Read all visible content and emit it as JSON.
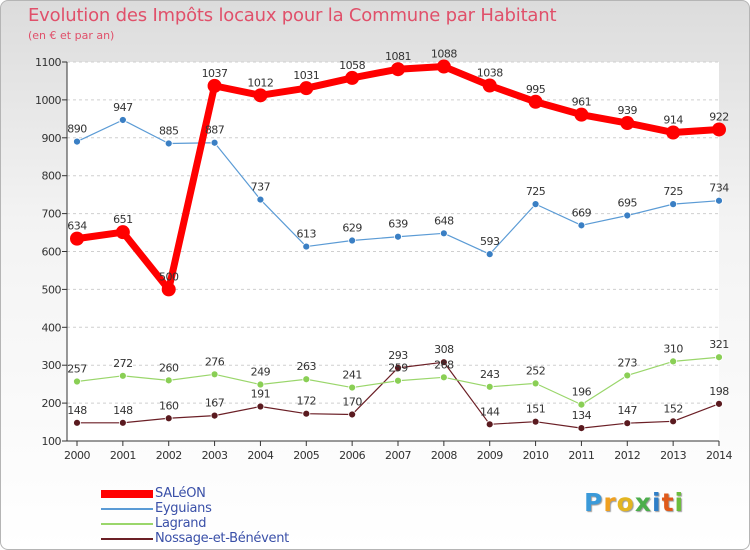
{
  "chart_data": {
    "type": "line",
    "title": "Evolution des Impôts locaux pour la Commune par Habitant",
    "subtitle": "(en € et par an)",
    "xlabel": "",
    "ylabel": "",
    "ylim": [
      100,
      1100
    ],
    "yticks": [
      100,
      200,
      300,
      400,
      500,
      600,
      700,
      800,
      900,
      1000,
      1100
    ],
    "x": [
      "2000",
      "2001",
      "2002",
      "2003",
      "2004",
      "2005",
      "2006",
      "2007",
      "2008",
      "2009",
      "2010",
      "2011",
      "2012",
      "2013",
      "2014"
    ],
    "grid": "horizontal dashed",
    "legend_position": "bottom-left",
    "series": [
      {
        "name": "SALéON",
        "color": "#ff0000",
        "values": [
          634,
          651,
          500,
          1037,
          1012,
          1031,
          1058,
          1081,
          1088,
          1038,
          995,
          961,
          939,
          914,
          922
        ]
      },
      {
        "name": "Eyguians",
        "color": "#5b9bd5",
        "values": [
          890,
          947,
          885,
          887,
          737,
          613,
          629,
          639,
          648,
          593,
          725,
          669,
          695,
          725,
          734
        ]
      },
      {
        "name": "Lagrand",
        "color": "#9ad66b",
        "values": [
          257,
          272,
          260,
          276,
          249,
          263,
          241,
          259,
          268,
          243,
          252,
          196,
          273,
          310,
          321
        ]
      },
      {
        "name": "Nossage-et-Bénévent",
        "color": "#6b1f26",
        "values": [
          148,
          148,
          160,
          167,
          191,
          172,
          170,
          293,
          308,
          144,
          151,
          134,
          147,
          152,
          198
        ]
      }
    ]
  },
  "logo": {
    "letters": [
      "P",
      "r",
      "o",
      "x",
      "i",
      "t",
      "i"
    ],
    "colors": [
      "#3b9ad9",
      "#f0a020",
      "#e3b520",
      "#4cae4c",
      "#2f7fc8",
      "#e05a1a",
      "#6cbd3c"
    ]
  }
}
